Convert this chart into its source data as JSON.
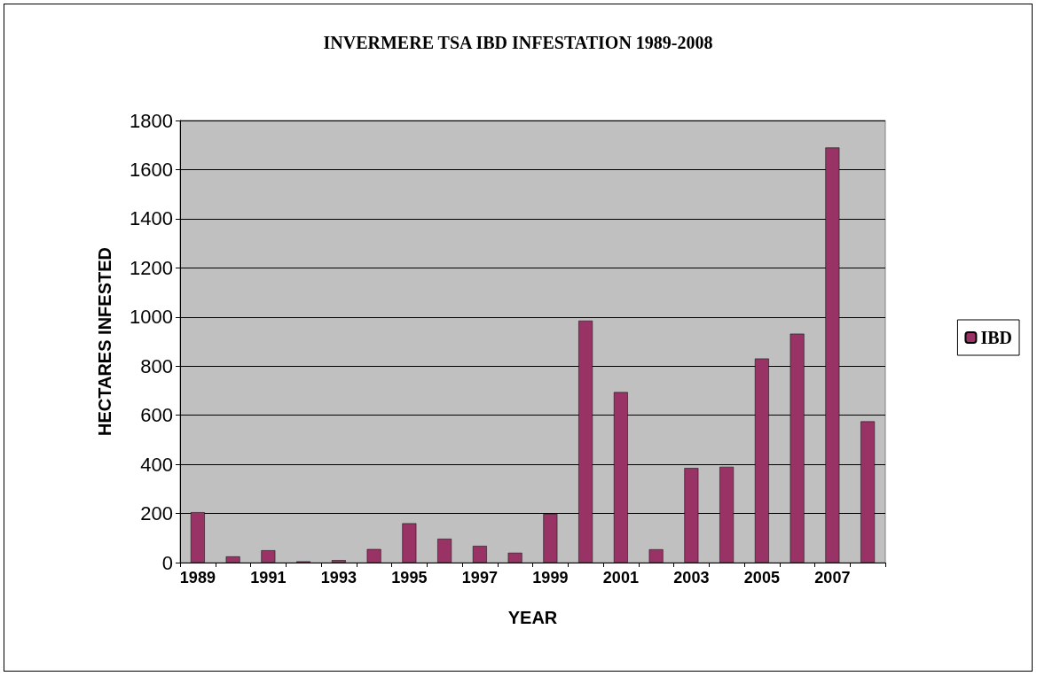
{
  "chart_data": {
    "type": "bar",
    "title": "INVERMERE TSA IBD INFESTATION 1989-2008",
    "xlabel": "YEAR",
    "ylabel": "HECTARES INFESTED",
    "categories": [
      "1989",
      null,
      "1991",
      null,
      "1993",
      null,
      "1995",
      null,
      "1997",
      null,
      "1999",
      null,
      "2001",
      null,
      "2003",
      null,
      "2005",
      null,
      "2007",
      null
    ],
    "series": [
      {
        "name": "IBD",
        "color": "#993366",
        "values": [
          205,
          25,
          50,
          5,
          10,
          55,
          160,
          97,
          68,
          40,
          198,
          985,
          694,
          54,
          385,
          390,
          831,
          932,
          1690,
          575
        ]
      }
    ],
    "ylim": [
      0,
      1800
    ],
    "yticks": [
      0,
      200,
      400,
      600,
      800,
      1000,
      1200,
      1400,
      1600,
      1800
    ],
    "grid": "y",
    "legend": "right"
  }
}
